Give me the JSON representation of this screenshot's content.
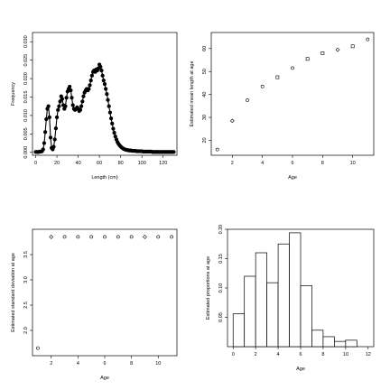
{
  "chart_data": [
    {
      "type": "line",
      "xlabel": "Length (cm)",
      "ylabel": "Frequency",
      "xlim": [
        -3,
        133
      ],
      "ylim": [
        -0.0008,
        0.0325
      ],
      "xticks": [
        "0",
        "20",
        "40",
        "60",
        "80",
        "100",
        "120"
      ],
      "yticks": [
        "0.000",
        "0.005",
        "0.010",
        "0.015",
        "0.020",
        "0.025",
        "0.030"
      ],
      "marker": "filled-circle",
      "x": [
        0,
        1,
        2,
        3,
        4,
        5,
        6,
        7,
        8,
        9,
        10,
        11,
        12,
        13,
        14,
        15,
        16,
        17,
        18,
        19,
        20,
        21,
        22,
        23,
        24,
        25,
        26,
        27,
        28,
        29,
        30,
        31,
        32,
        33,
        34,
        35,
        36,
        37,
        38,
        39,
        40,
        41,
        42,
        43,
        44,
        45,
        46,
        47,
        48,
        49,
        50,
        51,
        52,
        53,
        54,
        55,
        56,
        57,
        58,
        59,
        60,
        61,
        62,
        63,
        64,
        65,
        66,
        67,
        68,
        69,
        70,
        71,
        72,
        73,
        74,
        75,
        76,
        77,
        78,
        79,
        80,
        81,
        82,
        83,
        84,
        85,
        86,
        87,
        88,
        89,
        90,
        91,
        92,
        93,
        94,
        95,
        96,
        97,
        98,
        99,
        100,
        101,
        102,
        103,
        104,
        105,
        106,
        107,
        108,
        109,
        110,
        111,
        112,
        113,
        114,
        115,
        116,
        117,
        118,
        119,
        120,
        121,
        122,
        123,
        124,
        125,
        126,
        127,
        128,
        129,
        130
      ],
      "y": [
        0.0001,
        0.0001,
        0.0001,
        0.0001,
        0.0002,
        0.0002,
        0.0003,
        0.0008,
        0.0025,
        0.0055,
        0.009,
        0.0118,
        0.0125,
        0.0095,
        0.004,
        0.0012,
        0.0008,
        0.0015,
        0.0035,
        0.0065,
        0.0095,
        0.0115,
        0.0125,
        0.0138,
        0.0152,
        0.0145,
        0.0128,
        0.0118,
        0.0125,
        0.0148,
        0.0165,
        0.0172,
        0.0178,
        0.0168,
        0.0148,
        0.0128,
        0.0118,
        0.0115,
        0.0118,
        0.0122,
        0.0118,
        0.0112,
        0.0115,
        0.0125,
        0.0138,
        0.0152,
        0.0162,
        0.0168,
        0.0172,
        0.0168,
        0.0172,
        0.0182,
        0.0195,
        0.0208,
        0.0218,
        0.0222,
        0.0218,
        0.0225,
        0.0222,
        0.0228,
        0.0238,
        0.0232,
        0.0222,
        0.0208,
        0.0195,
        0.0185,
        0.0172,
        0.0158,
        0.0142,
        0.0125,
        0.0108,
        0.0092,
        0.0078,
        0.0064,
        0.0053,
        0.0043,
        0.0035,
        0.0028,
        0.0023,
        0.0019,
        0.0016,
        0.0013,
        0.0011,
        0.0009,
        0.0008,
        0.0007,
        0.0006,
        0.0006,
        0.0005,
        0.0005,
        0.0005,
        0.0004,
        0.0004,
        0.0004,
        0.0004,
        0.0003,
        0.0003,
        0.0003,
        0.0003,
        0.0003,
        0.0003,
        0.0002,
        0.0002,
        0.0002,
        0.0002,
        0.0002,
        0.0002,
        0.0002,
        0.0002,
        0.0002,
        0.0001,
        0.0001,
        0.0001,
        0.0001,
        0.0001,
        0.0001,
        0.0001,
        0.0001,
        0.0001,
        0.0001,
        0.0001,
        0.0001,
        0.0001,
        0.0001,
        0.0001,
        0.0001,
        0.0001,
        0.0001,
        0.0001,
        0.0001,
        0.0001
      ]
    },
    {
      "type": "scatter",
      "xlabel": "Age",
      "ylabel": "Estimated mean length at age",
      "xlim": [
        0.6,
        11.4
      ],
      "ylim": [
        13.5,
        67
      ],
      "xticks": [
        "2",
        "4",
        "6",
        "8",
        "10"
      ],
      "yticks": [
        "20",
        "30",
        "40",
        "50",
        "60"
      ],
      "series": [
        {
          "marker": "circle",
          "x": [
            1,
            3,
            4,
            6,
            11
          ],
          "y": [
            16,
            37.5,
            43.5,
            51.5,
            64
          ]
        },
        {
          "marker": "diamond",
          "x": [
            2,
            9
          ],
          "y": [
            28.5,
            59.5
          ]
        },
        {
          "marker": "square",
          "x": [
            5,
            7,
            8,
            10
          ],
          "y": [
            47.5,
            55.5,
            58,
            61
          ]
        }
      ]
    },
    {
      "type": "scatter",
      "xlabel": "Age",
      "ylabel": "Estimated standard deviation at age",
      "xlim": [
        0.6,
        11.4
      ],
      "ylim": [
        1.5,
        4.0
      ],
      "xticks": [
        "2",
        "4",
        "6",
        "8",
        "10"
      ],
      "yticks": [
        "2.0",
        "2.5",
        "3.0",
        "3.5"
      ],
      "series": [
        {
          "marker": "circle",
          "x": [
            1,
            3,
            4,
            5,
            6,
            7,
            8,
            10,
            11
          ],
          "y": [
            1.65,
            3.85,
            3.85,
            3.85,
            3.85,
            3.85,
            3.85,
            3.85,
            3.85
          ]
        },
        {
          "marker": "diamond",
          "x": [
            2,
            9
          ],
          "y": [
            3.85,
            3.85
          ]
        }
      ]
    },
    {
      "type": "bar",
      "xlabel": "Age",
      "ylabel": "Estimated proportions at age",
      "xlim": [
        -0.5,
        12.5
      ],
      "ylim": [
        0,
        0.2
      ],
      "xticks": [
        "0",
        "2",
        "4",
        "6",
        "8",
        "10",
        "12"
      ],
      "yticks": [
        "0.05",
        "0.10",
        "0.15",
        "0.20"
      ],
      "bins": [
        [
          0,
          1
        ],
        [
          1,
          2
        ],
        [
          2,
          3
        ],
        [
          3,
          4
        ],
        [
          4,
          5
        ],
        [
          5,
          6
        ],
        [
          6,
          7
        ],
        [
          7,
          8
        ],
        [
          8,
          9
        ],
        [
          9,
          10
        ],
        [
          10,
          11
        ]
      ],
      "values": [
        0.056,
        0.12,
        0.16,
        0.109,
        0.175,
        0.194,
        0.104,
        0.028,
        0.017,
        0.009,
        0.011
      ]
    }
  ]
}
